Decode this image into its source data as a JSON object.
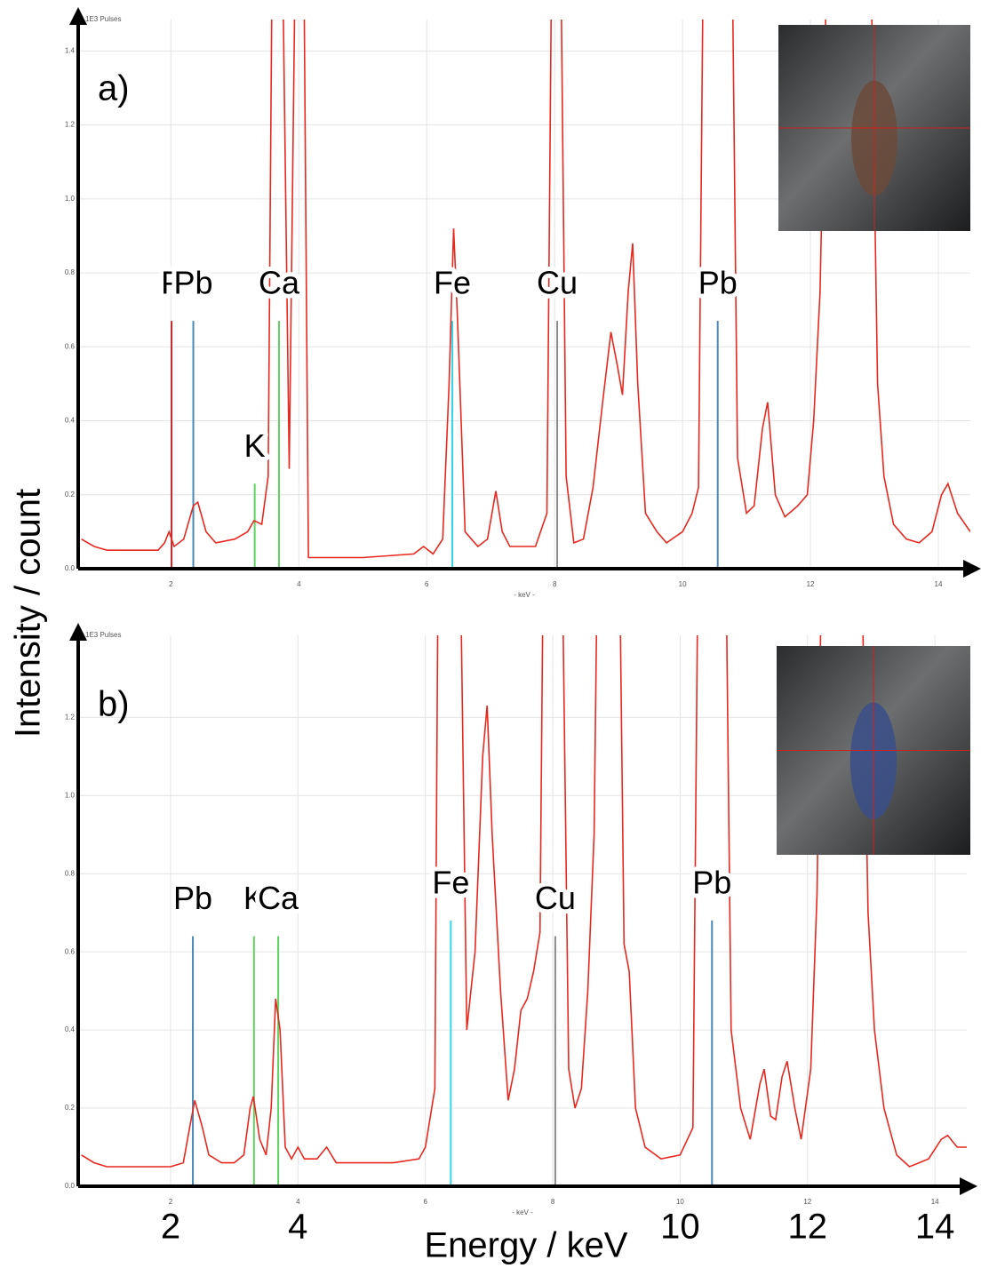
{
  "figure": {
    "ylabel": "Intensity  /  count",
    "xlabel": "Energy  /  keV",
    "xticks": [
      2,
      4,
      10,
      12,
      14
    ]
  },
  "chart_data": [
    {
      "type": "line",
      "label": "a)",
      "y_axis_label": "1E3 Pulses",
      "x_axis_label": "- keV -",
      "color": "#e8281e",
      "grid": true,
      "xlim": [
        0.55,
        14.5
      ],
      "ylim": [
        0,
        1.485
      ],
      "xticks": [
        2,
        4,
        6,
        8,
        10,
        12,
        14
      ],
      "yticks": [
        {
          "value": 0,
          "label": "0.0"
        },
        {
          "value": 0.2,
          "label": "0.2"
        },
        {
          "value": 0.4,
          "label": "0.4"
        },
        {
          "value": 0.6,
          "label": "0.6"
        },
        {
          "value": 0.8,
          "label": "0.8"
        },
        {
          "value": 1.0,
          "label": "1.0"
        },
        {
          "value": 1.2,
          "label": "1.2"
        },
        {
          "value": 1.4,
          "label": "1.4"
        }
      ],
      "x": [
        0.6,
        0.8,
        1.0,
        1.5,
        1.8,
        1.9,
        1.97,
        2.05,
        2.2,
        2.35,
        2.42,
        2.55,
        2.7,
        3.0,
        3.2,
        3.3,
        3.42,
        3.52,
        3.58,
        3.75,
        3.85,
        3.94,
        4.08,
        4.15,
        5.0,
        5.8,
        5.95,
        6.1,
        6.25,
        6.35,
        6.42,
        6.48,
        6.6,
        6.8,
        6.95,
        7.08,
        7.18,
        7.3,
        7.7,
        7.88,
        7.95,
        8.1,
        8.18,
        8.3,
        8.45,
        8.6,
        8.75,
        8.88,
        8.98,
        9.06,
        9.15,
        9.22,
        9.3,
        9.42,
        9.6,
        9.75,
        10.0,
        10.15,
        10.25,
        10.32,
        10.78,
        10.86,
        11.0,
        11.12,
        11.25,
        11.33,
        11.45,
        11.6,
        11.8,
        11.95,
        12.05,
        12.15,
        12.25,
        12.95,
        13.05,
        13.15,
        13.3,
        13.5,
        13.7,
        13.9,
        14.05,
        14.15,
        14.3,
        14.5
      ],
      "values": [
        0.08,
        0.06,
        0.05,
        0.05,
        0.05,
        0.07,
        0.1,
        0.06,
        0.08,
        0.17,
        0.18,
        0.1,
        0.07,
        0.08,
        0.1,
        0.13,
        0.12,
        0.25,
        1.6,
        1.6,
        0.27,
        1.6,
        1.6,
        0.03,
        0.03,
        0.04,
        0.06,
        0.04,
        0.08,
        0.5,
        0.92,
        0.68,
        0.1,
        0.06,
        0.08,
        0.21,
        0.1,
        0.06,
        0.06,
        0.15,
        1.6,
        1.6,
        0.25,
        0.07,
        0.08,
        0.22,
        0.45,
        0.64,
        0.55,
        0.47,
        0.75,
        0.88,
        0.5,
        0.15,
        0.1,
        0.07,
        0.1,
        0.15,
        0.22,
        1.6,
        1.6,
        0.3,
        0.15,
        0.17,
        0.38,
        0.45,
        0.2,
        0.14,
        0.17,
        0.2,
        0.4,
        0.75,
        1.6,
        1.6,
        0.5,
        0.25,
        0.12,
        0.08,
        0.07,
        0.1,
        0.2,
        0.23,
        0.15,
        0.1
      ],
      "markers": [
        {
          "label": "P",
          "energy": 2.01,
          "height": 0.67,
          "color": "#c0282a"
        },
        {
          "label": "Pb",
          "energy": 2.35,
          "height": 0.67,
          "color": "#4a88b8"
        },
        {
          "label": "K",
          "energy": 3.31,
          "height": 0.23,
          "color": "#5fd35f"
        },
        {
          "label": "Ca",
          "energy": 3.69,
          "height": 0.67,
          "color": "#5fd35f"
        },
        {
          "label": "Fe",
          "energy": 6.4,
          "height": 0.67,
          "color": "#33d6e6"
        },
        {
          "label": "Cu",
          "energy": 8.04,
          "height": 0.67,
          "color": "#8a8a8a"
        },
        {
          "label": "Pb",
          "energy": 10.55,
          "height": 0.67,
          "color": "#4a88b8"
        }
      ]
    },
    {
      "type": "line",
      "label": "b)",
      "y_axis_label": "1E3 Pulses",
      "x_axis_label": "- keV -",
      "color": "#e8281e",
      "grid": true,
      "xlim": [
        0.55,
        14.5
      ],
      "ylim": [
        0,
        1.41
      ],
      "xticks": [
        2,
        4,
        6,
        8,
        10,
        12,
        14
      ],
      "yticks": [
        {
          "value": 0,
          "label": "0.0"
        },
        {
          "value": 0.2,
          "label": "0.2"
        },
        {
          "value": 0.4,
          "label": "0.4"
        },
        {
          "value": 0.6,
          "label": "0.6"
        },
        {
          "value": 0.8,
          "label": "0.8"
        },
        {
          "value": 1.0,
          "label": "1.0"
        },
        {
          "value": 1.2,
          "label": "1.2"
        }
      ],
      "x": [
        0.6,
        0.8,
        1.0,
        2.0,
        2.2,
        2.3,
        2.38,
        2.5,
        2.6,
        2.8,
        3.0,
        3.15,
        3.25,
        3.3,
        3.4,
        3.5,
        3.58,
        3.65,
        3.72,
        3.8,
        3.9,
        4.0,
        4.1,
        4.3,
        4.45,
        4.6,
        5.5,
        5.9,
        6.0,
        6.15,
        6.2,
        6.55,
        6.65,
        6.78,
        6.9,
        6.97,
        7.05,
        7.18,
        7.3,
        7.4,
        7.5,
        7.6,
        7.7,
        7.8,
        7.85,
        8.15,
        8.25,
        8.35,
        8.45,
        8.55,
        8.65,
        8.7,
        9.05,
        9.12,
        9.2,
        9.3,
        9.45,
        9.7,
        10.0,
        10.2,
        10.28,
        10.72,
        10.8,
        10.95,
        11.1,
        11.25,
        11.32,
        11.42,
        11.5,
        11.6,
        11.68,
        11.8,
        11.9,
        12.05,
        12.15,
        12.22,
        12.85,
        12.95,
        13.05,
        13.2,
        13.4,
        13.6,
        13.9,
        14.1,
        14.2,
        14.35,
        14.5
      ],
      "values": [
        0.08,
        0.06,
        0.05,
        0.05,
        0.06,
        0.15,
        0.22,
        0.15,
        0.08,
        0.06,
        0.06,
        0.08,
        0.2,
        0.23,
        0.12,
        0.08,
        0.2,
        0.48,
        0.4,
        0.1,
        0.07,
        0.1,
        0.07,
        0.07,
        0.1,
        0.06,
        0.06,
        0.07,
        0.1,
        0.25,
        1.6,
        1.6,
        0.4,
        0.6,
        1.1,
        1.23,
        0.9,
        0.5,
        0.22,
        0.3,
        0.45,
        0.48,
        0.55,
        0.65,
        1.6,
        1.6,
        0.3,
        0.2,
        0.25,
        0.5,
        0.9,
        1.6,
        1.6,
        0.62,
        0.55,
        0.2,
        0.1,
        0.07,
        0.08,
        0.15,
        1.6,
        1.6,
        0.4,
        0.2,
        0.12,
        0.26,
        0.3,
        0.18,
        0.17,
        0.28,
        0.32,
        0.2,
        0.12,
        0.3,
        0.75,
        1.6,
        1.6,
        0.7,
        0.4,
        0.2,
        0.08,
        0.05,
        0.07,
        0.12,
        0.13,
        0.1,
        0.1
      ],
      "markers": [
        {
          "label": "Pb",
          "energy": 2.35,
          "height": 0.64,
          "color": "#4a88b8"
        },
        {
          "label": "K",
          "energy": 3.31,
          "height": 0.64,
          "color": "#5fd35f"
        },
        {
          "label": "Ca",
          "energy": 3.69,
          "height": 0.64,
          "color": "#5fd35f"
        },
        {
          "label": "Fe",
          "energy": 6.4,
          "height": 0.68,
          "color": "#33d6e6"
        },
        {
          "label": "Cu",
          "energy": 8.04,
          "height": 0.64,
          "color": "#8a8a8a"
        },
        {
          "label": "Pb",
          "energy": 10.5,
          "height": 0.68,
          "color": "#4a88b8"
        }
      ]
    }
  ]
}
